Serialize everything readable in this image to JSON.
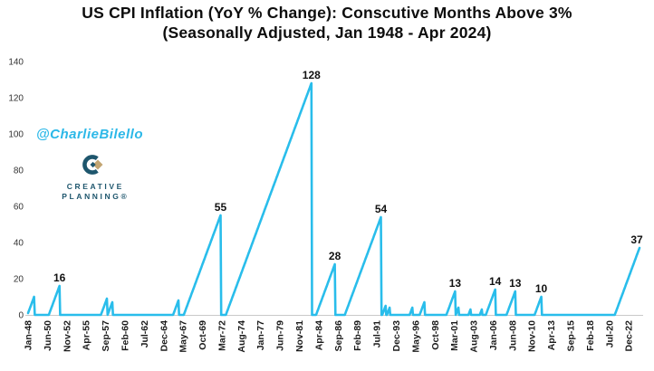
{
  "header": {
    "title_line1": "US CPI Inflation (YoY % Change): Conscutive Months Above 3%",
    "title_line2": "(Seasonally Adjusted, Jan 1948 - Apr 2024)"
  },
  "watermark": {
    "handle": "@CharlieBilello",
    "color": "#2cb8e8"
  },
  "logo": {
    "line1": "CREATIVE",
    "line2": "PLANNING®",
    "navy": "#1e566d",
    "gold": "#c3a572"
  },
  "chart_data": {
    "type": "line",
    "title": "US CPI Inflation (YoY % Change): Conscutive Months Above 3%",
    "subtitle": "(Seasonally Adjusted, Jan 1948 - Apr 2024)",
    "series_name": "Consecutive months with CPI YoY above 3%",
    "x_start": "1948-01",
    "x_end": "2024-04",
    "x_tick_interval_months": 29,
    "x_tick_labels": [
      "Jan-48",
      "Jun-50",
      "Nov-52",
      "Apr-55",
      "Sep-57",
      "Feb-60",
      "Jul-62",
      "Dec-64",
      "May-67",
      "Oct-69",
      "Mar-72",
      "Aug-74",
      "Jan-77",
      "Jun-79",
      "Nov-81",
      "Apr-84",
      "Sep-86",
      "Feb-89",
      "Jul-91",
      "Dec-93",
      "May-96",
      "Oct-98",
      "Mar-01",
      "Aug-03",
      "Jan-06",
      "Jun-08",
      "Nov-10",
      "Apr-13",
      "Sep-15",
      "Feb-18",
      "Jul-20",
      "Dec-22"
    ],
    "y_ticks": [
      0,
      20,
      40,
      60,
      80,
      100,
      120,
      140
    ],
    "ylim": [
      0,
      140
    ],
    "grid": false,
    "legend": false,
    "line_color": "#29bdeb",
    "axis_line_color": "#c9c9c9",
    "streaks": [
      {
        "start": "1948-01",
        "length": 10,
        "labeled": false
      },
      {
        "start": "1950-09",
        "length": 16,
        "labeled": true
      },
      {
        "start": "1957-03",
        "length": 9,
        "labeled": false
      },
      {
        "start": "1958-01",
        "length": 7,
        "labeled": false
      },
      {
        "start": "1966-03",
        "length": 8,
        "labeled": false
      },
      {
        "start": "1967-07",
        "length": 55,
        "labeled": true
      },
      {
        "start": "1972-10",
        "length": 128,
        "labeled": true
      },
      {
        "start": "1984-01",
        "length": 28,
        "labeled": true
      },
      {
        "start": "1987-08",
        "length": 54,
        "labeled": true
      },
      {
        "start": "1992-04",
        "length": 5,
        "labeled": false
      },
      {
        "start": "1992-11",
        "length": 4,
        "labeled": false
      },
      {
        "start": "1995-09",
        "length": 4,
        "labeled": false
      },
      {
        "start": "1996-12",
        "length": 7,
        "labeled": false
      },
      {
        "start": "2000-04",
        "length": 13,
        "labeled": true
      },
      {
        "start": "2001-06",
        "length": 4,
        "labeled": false
      },
      {
        "start": "2003-01",
        "length": 3,
        "labeled": false
      },
      {
        "start": "2004-06",
        "length": 3,
        "labeled": false
      },
      {
        "start": "2005-03",
        "length": 14,
        "labeled": true
      },
      {
        "start": "2007-10",
        "length": 13,
        "labeled": true
      },
      {
        "start": "2011-04",
        "length": 10,
        "labeled": true
      },
      {
        "start": "2021-04",
        "length": 37,
        "labeled": true
      }
    ],
    "peak_labels": [
      "16",
      "55",
      "128",
      "28",
      "54",
      "13",
      "14",
      "13",
      "10",
      "37"
    ]
  }
}
